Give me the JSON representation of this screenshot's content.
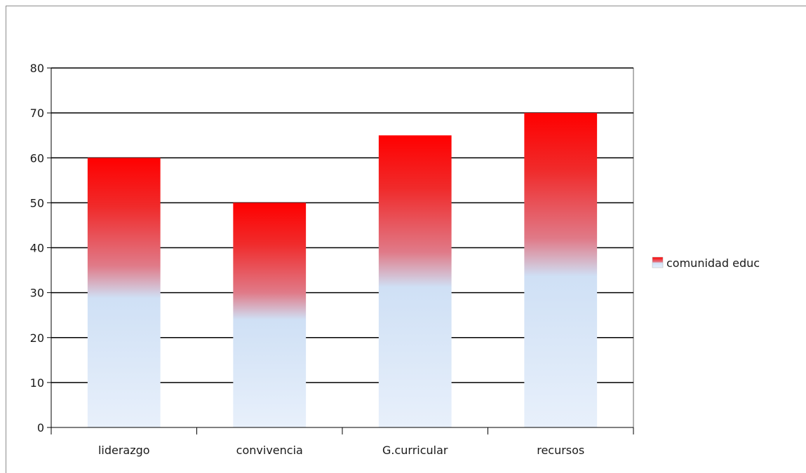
{
  "chart_data": {
    "type": "bar",
    "categories": [
      "liderazgo",
      "convivencia",
      "G.curricular",
      "recursos"
    ],
    "series": [
      {
        "name": "comunidad educ",
        "values": [
          60,
          50,
          65,
          70
        ]
      }
    ],
    "title": "",
    "xlabel": "",
    "ylabel": "",
    "ylim": [
      0,
      80
    ],
    "yticks": [
      0,
      10,
      20,
      30,
      40,
      50,
      60,
      70,
      80
    ],
    "grid": true,
    "legend_position": "right",
    "colors": {
      "bar_top": "#ff0000",
      "bar_bottom": "#e8f0fb",
      "bar_mid": "#cfe0f5",
      "grid": "#000000",
      "axis": "#000000"
    }
  }
}
